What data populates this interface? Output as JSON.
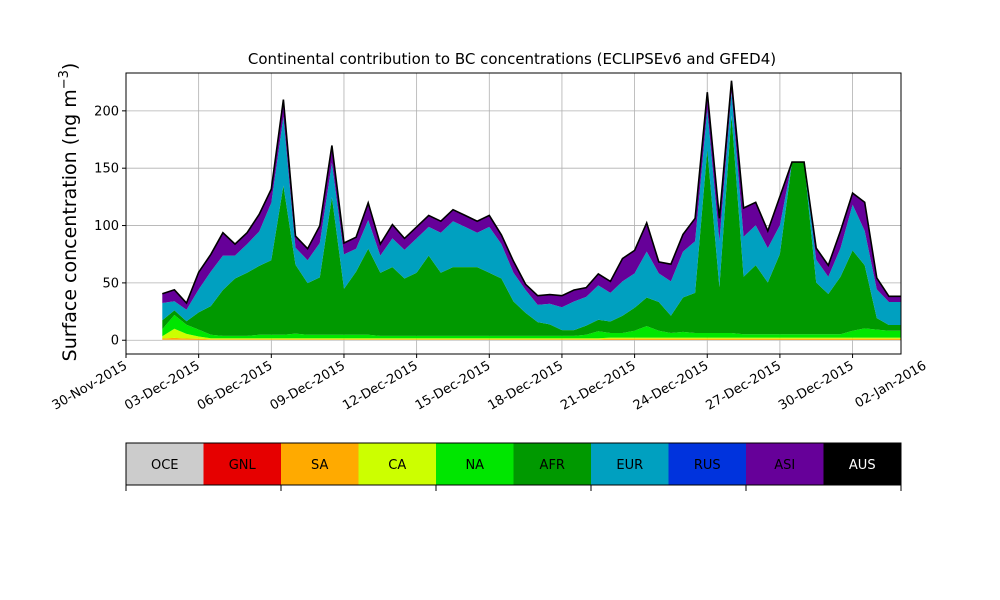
{
  "chart_data": {
    "type": "area",
    "stacked": true,
    "title": "Continental contribution to BC concentrations (ECLIPSEv6 and GFED4)",
    "ylabel_main": "Surface concentration (ng m",
    "ylabel_sup": "−3",
    "ylabel_close": ")",
    "xlabel": "",
    "ylim": [
      -12,
      233
    ],
    "xlim": [
      -1.0,
      31.0
    ],
    "y_ticks": [
      0,
      50,
      100,
      150,
      200
    ],
    "x_ticks": [
      {
        "x": -1.0,
        "label": "30-Nov-2015"
      },
      {
        "x": 2.0,
        "label": "03-Dec-2015"
      },
      {
        "x": 5.0,
        "label": "06-Dec-2015"
      },
      {
        "x": 8.0,
        "label": "09-Dec-2015"
      },
      {
        "x": 11.0,
        "label": "12-Dec-2015"
      },
      {
        "x": 14.0,
        "label": "15-Dec-2015"
      },
      {
        "x": 17.0,
        "label": "18-Dec-2015"
      },
      {
        "x": 20.0,
        "label": "21-Dec-2015"
      },
      {
        "x": 23.0,
        "label": "24-Dec-2015"
      },
      {
        "x": 26.0,
        "label": "27-Dec-2015"
      },
      {
        "x": 29.0,
        "label": "30-Dec-2015"
      },
      {
        "x": 32.0,
        "label": "02-Jan-2016"
      }
    ],
    "grid": true,
    "x_day": [
      0.5,
      1.0,
      1.5,
      2.0,
      2.5,
      3.0,
      3.5,
      4.0,
      4.5,
      5.0,
      5.5,
      6.0,
      6.5,
      7.0,
      7.5,
      8.0,
      8.5,
      9.0,
      9.5,
      10.0,
      10.5,
      11.0,
      11.5,
      12.0,
      12.5,
      13.0,
      13.5,
      14.0,
      14.5,
      15.0,
      15.5,
      16.0,
      16.5,
      17.0,
      17.5,
      18.0,
      18.5,
      19.0,
      19.5,
      20.0,
      20.5,
      21.0,
      21.5,
      22.0,
      22.5,
      23.0,
      23.5,
      24.0,
      24.5,
      25.0,
      25.5,
      26.0,
      26.5,
      27.0,
      27.5,
      28.0,
      28.5,
      29.0,
      29.5,
      30.0,
      30.5,
      31.0
    ],
    "series": [
      {
        "name": "OCE",
        "color": "#cccccc",
        "values": [
          0.5,
          0.5,
          0.5,
          0.3,
          0.3,
          0.3,
          0.3,
          0.3,
          0.3,
          0.3,
          0.3,
          0.3,
          0.3,
          0.3,
          0.3,
          0.3,
          0.3,
          0.3,
          0.3,
          0.3,
          0.3,
          0.3,
          0.3,
          0.3,
          0.3,
          0.3,
          0.3,
          0.3,
          0.3,
          0.3,
          0.3,
          0.3,
          0.3,
          0.3,
          0.3,
          0.3,
          0.3,
          0.3,
          0.3,
          0.3,
          0.3,
          0.3,
          0.3,
          0.3,
          0.3,
          0.3,
          0.3,
          0.3,
          0.3,
          0.3,
          0.3,
          0.3,
          0.3,
          0.3,
          0.3,
          0.3,
          0.3,
          0.3,
          0.3,
          0.3,
          0.3,
          0.3
        ]
      },
      {
        "name": "GNL",
        "color": "#e60000",
        "values": [
          0,
          0,
          0,
          0,
          0,
          0,
          0,
          0,
          0,
          0,
          0,
          0,
          0,
          0,
          0,
          0,
          0,
          0,
          0,
          0,
          0,
          0,
          0,
          0,
          0,
          0,
          0,
          0,
          0,
          0,
          0,
          0,
          0,
          0,
          0,
          0,
          0,
          0,
          0,
          0,
          0,
          0,
          0,
          0,
          0,
          0,
          0,
          0,
          0,
          0,
          0,
          0,
          0,
          0,
          0,
          0,
          0,
          0,
          0,
          0,
          0,
          0
        ]
      },
      {
        "name": "SA",
        "color": "#ffaa00",
        "values": [
          1,
          1.5,
          1,
          1,
          0.5,
          0.5,
          0.5,
          0.5,
          0.5,
          0.5,
          0.5,
          0.5,
          0.5,
          0.5,
          0.5,
          0.5,
          0.5,
          0.5,
          0.5,
          0.5,
          0.5,
          0.5,
          0.5,
          0.5,
          0.5,
          0.5,
          0.5,
          0.5,
          0.5,
          0.5,
          0.5,
          0.5,
          0.5,
          0.5,
          0.5,
          0.5,
          0.5,
          1,
          1,
          1,
          1,
          1,
          1,
          1,
          1,
          1,
          1,
          1,
          1,
          1,
          1,
          1,
          1,
          1,
          1,
          1,
          1,
          1,
          1,
          1,
          1,
          1
        ]
      },
      {
        "name": "CA",
        "color": "#ccff00",
        "values": [
          2,
          8,
          4,
          2,
          1,
          1,
          1,
          1,
          1,
          1,
          1,
          1,
          1,
          1,
          1,
          1,
          1,
          1,
          1,
          1,
          1,
          1,
          1,
          1,
          1,
          1,
          1,
          1,
          1,
          1,
          1,
          1,
          1,
          1,
          1,
          1,
          1,
          1,
          1,
          1,
          1,
          1,
          1,
          1,
          1,
          1,
          1,
          1,
          1,
          1,
          1,
          1,
          1,
          1,
          1,
          1,
          1,
          1,
          1,
          1,
          1,
          1
        ]
      },
      {
        "name": "NA",
        "color": "#00e600",
        "values": [
          6,
          12,
          8,
          6,
          3,
          2,
          2,
          2,
          3,
          3,
          3,
          4,
          3,
          3,
          3,
          3,
          3,
          3,
          2,
          2,
          2,
          2,
          2,
          2,
          2,
          2,
          2,
          2,
          2,
          2,
          2,
          2,
          2,
          2,
          2,
          3,
          6,
          4,
          4,
          6,
          10,
          6,
          4,
          5,
          4,
          4,
          4,
          4,
          3,
          3,
          3,
          3,
          3,
          3,
          3,
          3,
          3,
          6,
          8,
          7,
          6,
          6
        ]
      },
      {
        "name": "AFR",
        "color": "#009900",
        "values": [
          8,
          4,
          3,
          15,
          25,
          40,
          50,
          55,
          60,
          65,
          130,
          60,
          45,
          50,
          120,
          40,
          55,
          75,
          55,
          60,
          50,
          55,
          70,
          55,
          60,
          60,
          60,
          55,
          50,
          30,
          20,
          12,
          10,
          5,
          5,
          8,
          10,
          10,
          15,
          20,
          25,
          25,
          15,
          30,
          35,
          160,
          40,
          190,
          50,
          60,
          45,
          70,
          150,
          150,
          45,
          35,
          50,
          70,
          55,
          10,
          5,
          5
        ]
      },
      {
        "name": "EUR",
        "color": "#00a0c0",
        "values": [
          15,
          8,
          10,
          20,
          30,
          30,
          20,
          25,
          30,
          50,
          60,
          15,
          20,
          30,
          30,
          30,
          20,
          25,
          15,
          25,
          25,
          30,
          25,
          35,
          40,
          35,
          30,
          40,
          30,
          25,
          20,
          15,
          18,
          20,
          25,
          25,
          30,
          25,
          30,
          30,
          40,
          25,
          30,
          40,
          45,
          35,
          40,
          20,
          35,
          35,
          30,
          25,
          0,
          0,
          20,
          15,
          25,
          40,
          30,
          25,
          20,
          20
        ]
      },
      {
        "name": "RUS",
        "color": "#0033dd",
        "values": [
          0,
          0,
          0,
          0,
          0,
          0,
          0,
          0,
          0,
          0,
          0,
          0,
          0,
          0,
          0,
          0,
          0,
          0,
          0,
          0,
          0,
          0,
          0,
          0,
          0,
          0,
          0,
          0,
          0,
          0,
          0,
          0,
          0,
          0,
          0,
          0,
          0,
          0,
          0,
          0,
          0,
          0,
          0,
          0,
          0,
          0,
          0,
          0,
          0,
          0,
          0,
          0,
          0,
          0,
          0,
          0,
          0,
          0,
          0,
          0,
          0,
          0
        ]
      },
      {
        "name": "ASI",
        "color": "#660099",
        "values": [
          8,
          10,
          6,
          15,
          15,
          20,
          10,
          10,
          15,
          12,
          15,
          10,
          10,
          15,
          15,
          10,
          10,
          15,
          10,
          12,
          10,
          10,
          10,
          10,
          10,
          10,
          10,
          10,
          8,
          10,
          5,
          8,
          8,
          10,
          10,
          8,
          10,
          10,
          20,
          20,
          25,
          10,
          15,
          15,
          20,
          15,
          20,
          10,
          25,
          20,
          15,
          25,
          0,
          0,
          10,
          10,
          15,
          10,
          25,
          10,
          5,
          5
        ]
      },
      {
        "name": "AUS",
        "color": "#000000",
        "values": [
          0,
          0,
          0,
          0,
          0,
          0,
          0,
          0,
          0,
          0,
          0,
          0,
          0,
          0,
          0,
          0,
          0,
          0,
          0,
          0,
          0,
          0,
          0,
          0,
          0,
          0,
          0,
          0,
          0,
          0,
          0,
          0,
          0,
          0,
          0,
          0,
          0,
          0,
          0,
          0,
          0,
          0,
          0,
          0,
          0,
          0,
          0,
          0,
          0,
          0,
          0,
          0,
          0,
          0,
          0,
          0,
          0,
          0,
          0,
          0,
          0,
          0
        ]
      }
    ],
    "legend_placement": "below"
  }
}
